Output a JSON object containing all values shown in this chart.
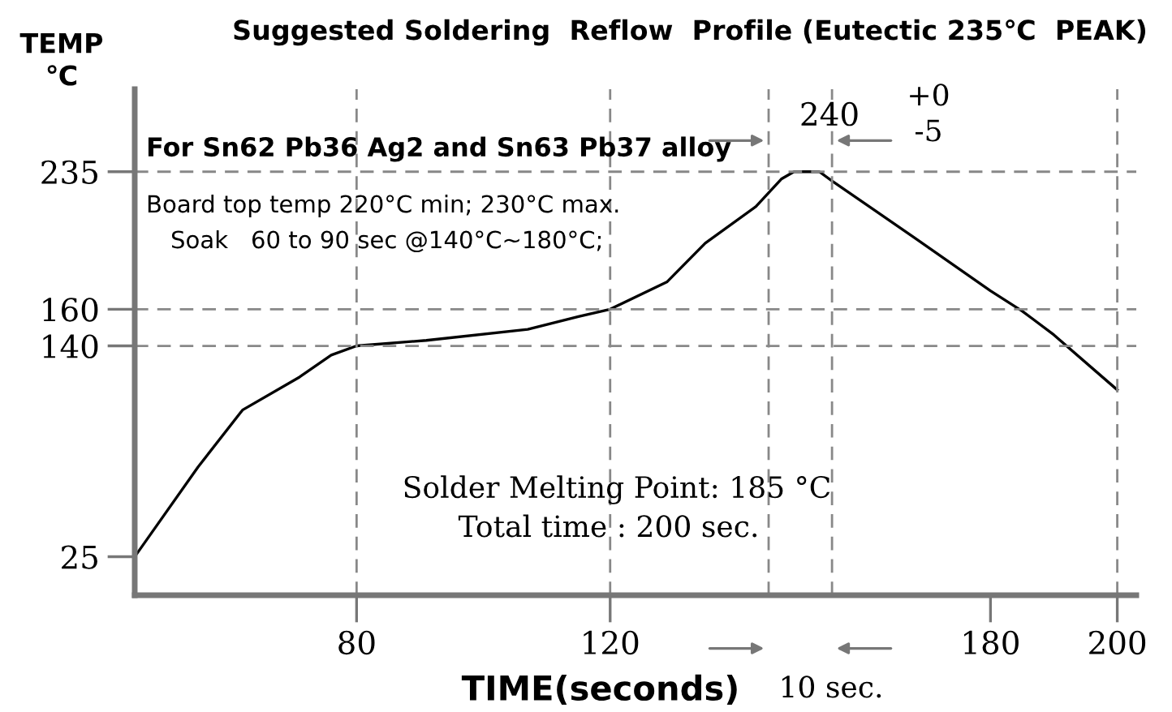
{
  "chart_data": {
    "type": "line",
    "title": "Suggested Soldering  Reflow  Profile (Eutectic 235℃  PEAK)",
    "xlabel": "TIME(seconds)",
    "ylabel": "TEMP\n℃",
    "x": [
      45,
      55,
      62,
      71,
      76,
      80,
      91,
      107,
      115,
      120,
      129,
      135,
      143,
      147,
      149,
      153,
      155,
      168,
      180,
      185,
      190,
      200
    ],
    "series": [
      {
        "color": "#000000",
        "values": [
          25,
          74,
          105,
          123,
          135,
          140,
          143,
          149,
          156,
          160,
          175,
          196,
          216,
          231,
          235,
          235,
          230,
          199,
          170,
          159,
          146,
          116
        ]
      }
    ],
    "xlim": [
      45,
      203
    ],
    "ylim": [
      4,
      280
    ],
    "xticks": [
      80,
      120,
      180,
      200
    ],
    "yticks": [
      25,
      140,
      160,
      235
    ],
    "grid": false,
    "marker": "none",
    "line_style": "solid",
    "ref_lines": [
      {
        "axis": "y",
        "value": 235,
        "color": "#888888",
        "line_style": "dashed"
      },
      {
        "axis": "y",
        "value": 160,
        "color": "#888888",
        "line_style": "dashed"
      },
      {
        "axis": "y",
        "value": 140,
        "color": "#888888",
        "line_style": "dashed"
      },
      {
        "axis": "x",
        "value": 80,
        "color": "#888888",
        "line_style": "dashed"
      },
      {
        "axis": "x",
        "value": 120,
        "color": "#888888",
        "line_style": "dashed"
      },
      {
        "axis": "x",
        "value": 145,
        "color": "#888888",
        "line_style": "dashed"
      },
      {
        "axis": "x",
        "value": 155,
        "color": "#888888",
        "line_style": "dashed"
      },
      {
        "axis": "x",
        "value": 200,
        "color": "#888888",
        "line_style": "dashed"
      }
    ],
    "annotations": [
      "240",
      "+0",
      "-5",
      "For Sn62 Pb36 Ag2 and Sn63 Pb37 alloy",
      "Board top temp 220°C min; 230°C max.",
      "Soak   60 to 90 sec @140°C~180°C;",
      "Solder Melting Point: 185 °C",
      "Total time : 200 sec.",
      "10 sec."
    ]
  }
}
